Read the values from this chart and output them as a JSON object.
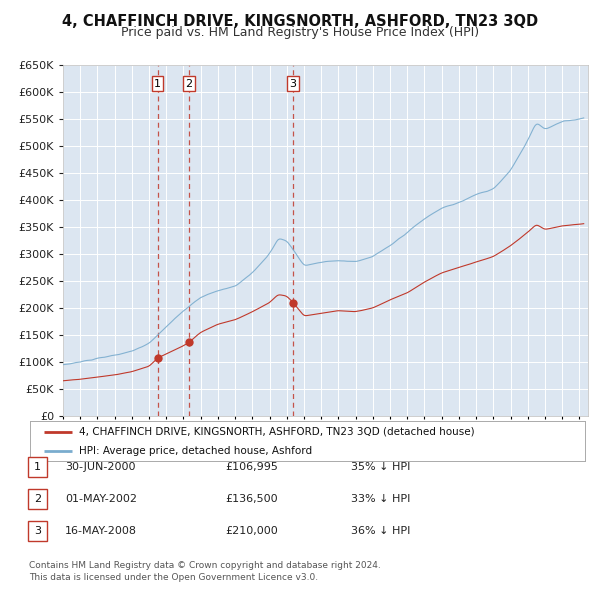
{
  "title": "4, CHAFFINCH DRIVE, KINGSNORTH, ASHFORD, TN23 3QD",
  "subtitle": "Price paid vs. HM Land Registry's House Price Index (HPI)",
  "ylim": [
    0,
    650000
  ],
  "yticks": [
    0,
    50000,
    100000,
    150000,
    200000,
    250000,
    300000,
    350000,
    400000,
    450000,
    500000,
    550000,
    600000,
    650000
  ],
  "xlim_start": 1995.0,
  "xlim_end": 2025.5,
  "bg_color": "#dce6f1",
  "grid_color": "#ffffff",
  "hpi_color": "#7aacce",
  "price_color": "#c0392b",
  "legend_label_price": "4, CHAFFINCH DRIVE, KINGSNORTH, ASHFORD, TN23 3QD (detached house)",
  "legend_label_hpi": "HPI: Average price, detached house, Ashford",
  "transactions": [
    {
      "num": 1,
      "date_year": 2000.49,
      "price": 106995,
      "label": "1"
    },
    {
      "num": 2,
      "date_year": 2002.33,
      "price": 136500,
      "label": "2"
    },
    {
      "num": 3,
      "date_year": 2008.37,
      "price": 210000,
      "label": "3"
    }
  ],
  "transaction_table": [
    {
      "num": "1",
      "date": "30-JUN-2000",
      "price": "£106,995",
      "pct": "35% ↓ HPI"
    },
    {
      "num": "2",
      "date": "01-MAY-2002",
      "price": "£136,500",
      "pct": "33% ↓ HPI"
    },
    {
      "num": "3",
      "date": "16-MAY-2008",
      "price": "£210,000",
      "pct": "36% ↓ HPI"
    }
  ],
  "footer": "Contains HM Land Registry data © Crown copyright and database right 2024.\nThis data is licensed under the Open Government Licence v3.0.",
  "title_fontsize": 10.5,
  "subtitle_fontsize": 9
}
